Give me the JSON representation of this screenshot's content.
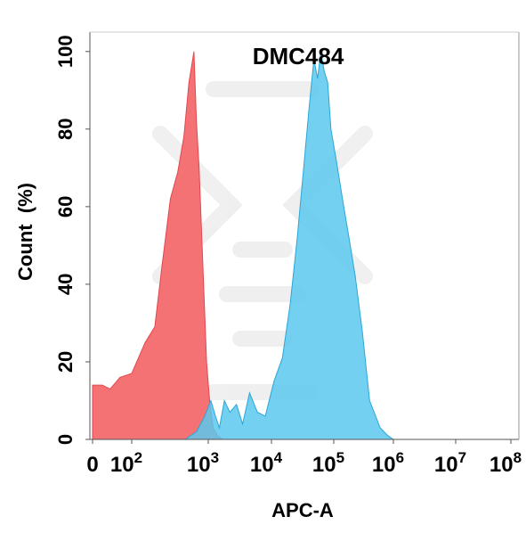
{
  "chart_data": {
    "type": "area",
    "title": "DMC484",
    "xlabel": "APC-A",
    "ylabel": "Count  (%)",
    "xscale": "biexponential",
    "ylim": [
      0,
      105
    ],
    "yticks": [
      0,
      20,
      40,
      60,
      80,
      100
    ],
    "xticks": [
      {
        "base": "0",
        "exp": ""
      },
      {
        "base": "10",
        "exp": "2"
      },
      {
        "base": "10",
        "exp": "3"
      },
      {
        "base": "10",
        "exp": "4"
      },
      {
        "base": "10",
        "exp": "5"
      },
      {
        "base": "10",
        "exp": "6"
      },
      {
        "base": "10",
        "exp": "7"
      },
      {
        "base": "10",
        "exp": "8"
      }
    ],
    "grid": false,
    "series": [
      {
        "color": "#f47174",
        "stroke": "#e0484d",
        "x": [
          0,
          25,
          45,
          70,
          100,
          150,
          200,
          250,
          320,
          400,
          480,
          560,
          650,
          700,
          760,
          850,
          950,
          1050,
          1200,
          1400,
          1700,
          2000
        ],
        "y": [
          14,
          14,
          13,
          16,
          17,
          25,
          29,
          45,
          62,
          69,
          78,
          92,
          100,
          82,
          70,
          45,
          20,
          10,
          3,
          1,
          0,
          0
        ]
      },
      {
        "color": "#5bc8ef",
        "stroke": "#2aa7d6",
        "x": [
          500,
          700,
          900,
          1100,
          1300,
          1500,
          1800,
          2200,
          2800,
          3500,
          4500,
          6000,
          8000,
          11000,
          15000,
          20000,
          26000,
          32000,
          40000,
          48000,
          55000,
          62000,
          70000,
          80000,
          90000,
          110000,
          140000,
          180000,
          230000,
          300000,
          400000,
          600000,
          800000,
          1000000
        ],
        "y": [
          0,
          2,
          6,
          10,
          6,
          3,
          10,
          7,
          9,
          4,
          12,
          7,
          6,
          15,
          21,
          35,
          52,
          68,
          85,
          98,
          93,
          100,
          95,
          92,
          80,
          72,
          62,
          52,
          42,
          28,
          10,
          3,
          1,
          0
        ]
      }
    ]
  }
}
